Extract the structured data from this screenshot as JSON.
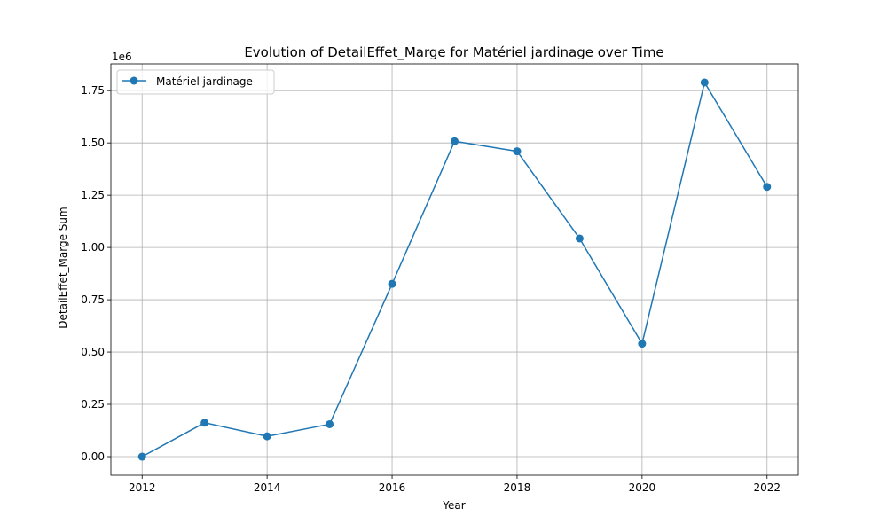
{
  "chart_data": {
    "type": "line",
    "title": "Evolution of DetailEffet_Marge for Matériel jardinage over Time",
    "xlabel": "Year",
    "ylabel": "DetailEffet_Marge Sum",
    "y_offset_label": "1e6",
    "x_ticks": [
      "2012",
      "2014",
      "2016",
      "2018",
      "2020",
      "2022"
    ],
    "y_ticks": [
      "0.00",
      "0.25",
      "0.50",
      "0.75",
      "1.00",
      "1.25",
      "1.50",
      "1.75"
    ],
    "xlim": [
      2011.5,
      2022.5
    ],
    "ylim": [
      -89000,
      1878000
    ],
    "grid": true,
    "legend": "top-left",
    "series": [
      {
        "name": "Matériel jardinage",
        "color": "#1f77b4",
        "marker": "circle",
        "x": [
          2012,
          2013,
          2014,
          2015,
          2016,
          2017,
          2018,
          2019,
          2020,
          2021,
          2022
        ],
        "y": [
          0,
          162000,
          97000,
          155000,
          826000,
          1508000,
          1460000,
          1043000,
          540000,
          1789000,
          1290000
        ]
      }
    ]
  }
}
